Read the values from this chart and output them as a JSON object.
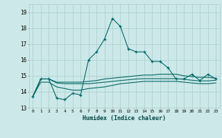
{
  "xlabel": "Humidex (Indice chaleur)",
  "background_color": "#cce8e8",
  "grid_color": "#aacccc",
  "line_color": "#006666",
  "x_ticks": [
    0,
    1,
    2,
    3,
    4,
    5,
    6,
    7,
    8,
    9,
    10,
    11,
    12,
    13,
    14,
    15,
    16,
    17,
    18,
    19,
    20,
    21,
    22,
    23
  ],
  "ylim": [
    13.0,
    19.5
  ],
  "xlim": [
    -0.5,
    23.5
  ],
  "yticks": [
    13,
    14,
    15,
    16,
    17,
    18,
    19
  ],
  "series": [
    [
      13.7,
      14.8,
      14.8,
      13.6,
      13.5,
      13.9,
      13.8,
      16.0,
      16.5,
      17.3,
      18.6,
      18.1,
      16.7,
      16.5,
      16.5,
      15.9,
      15.9,
      15.5,
      14.8,
      14.8,
      15.1,
      14.7,
      15.1,
      14.8
    ],
    [
      13.7,
      14.8,
      14.8,
      14.6,
      14.6,
      14.6,
      14.6,
      14.65,
      14.7,
      14.8,
      14.85,
      14.9,
      14.95,
      15.0,
      15.05,
      15.05,
      15.1,
      15.1,
      15.1,
      15.0,
      14.95,
      14.9,
      14.9,
      14.85
    ],
    [
      13.7,
      14.8,
      14.8,
      14.55,
      14.5,
      14.5,
      14.5,
      14.5,
      14.55,
      14.6,
      14.65,
      14.7,
      14.75,
      14.8,
      14.82,
      14.82,
      14.82,
      14.82,
      14.82,
      14.78,
      14.72,
      14.68,
      14.68,
      14.72
    ],
    [
      13.7,
      14.6,
      14.6,
      14.3,
      14.2,
      14.1,
      14.1,
      14.2,
      14.25,
      14.3,
      14.4,
      14.5,
      14.55,
      14.6,
      14.65,
      14.65,
      14.65,
      14.65,
      14.65,
      14.6,
      14.55,
      14.5,
      14.5,
      14.55
    ]
  ]
}
